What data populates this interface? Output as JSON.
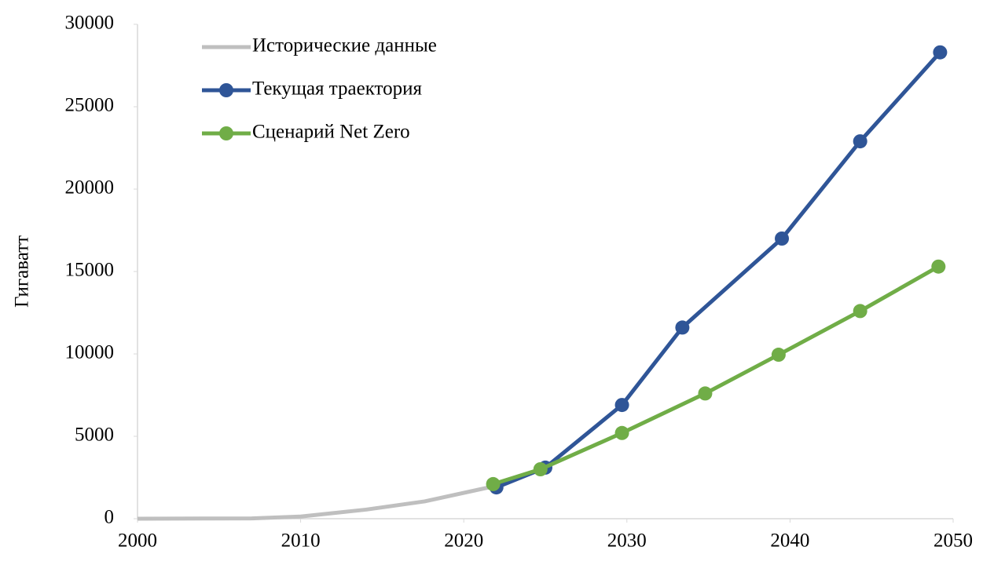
{
  "chart_data": {
    "type": "line",
    "ylabel": "Гигаватт",
    "xlim": [
      2000,
      2050
    ],
    "xticks": [
      2000,
      2010,
      2020,
      2030,
      2040,
      2050
    ],
    "ylim": [
      0,
      30000
    ],
    "yticks": [
      0,
      5000,
      10000,
      15000,
      20000,
      25000,
      30000
    ],
    "legend": "upper left",
    "series": [
      {
        "name": "Исторические данные",
        "color": "#bfbfbf",
        "markers": false,
        "x": [
          2000,
          2007,
          2010,
          2014,
          2017.6,
          2022
        ],
        "values": [
          0,
          20,
          130,
          550,
          1050,
          2000
        ]
      },
      {
        "name": "Текущая траектория",
        "color": "#2f5597",
        "markers": true,
        "x": [
          2022,
          2025,
          2029.7,
          2033.4,
          2039.5,
          2044.3,
          2049.2
        ],
        "values": [
          1900,
          3100,
          6900,
          11600,
          17000,
          22900,
          28300
        ]
      },
      {
        "name": "Сценарий Net Zero",
        "color": "#70ad47",
        "markers": true,
        "x": [
          2021.8,
          2024.7,
          2029.7,
          2034.8,
          2039.3,
          2044.3,
          2049.1
        ],
        "values": [
          2100,
          3000,
          5200,
          7600,
          9950,
          12600,
          15300
        ]
      }
    ]
  }
}
